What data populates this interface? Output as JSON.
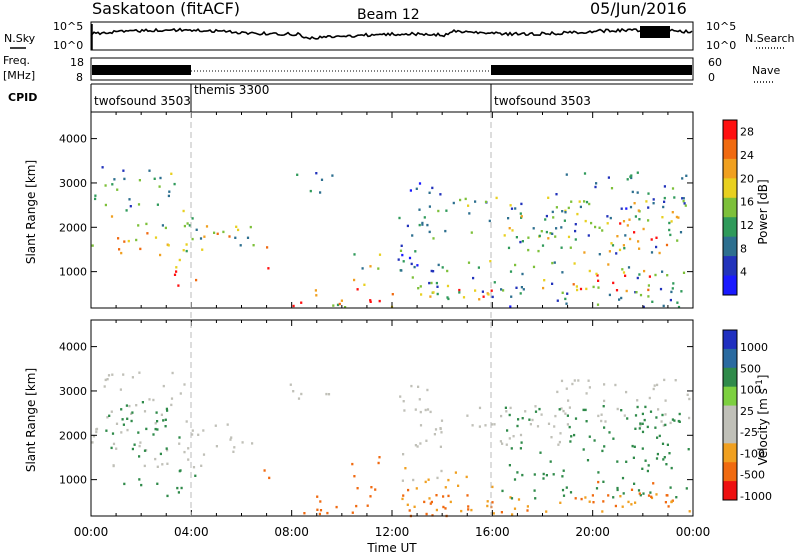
{
  "header": {
    "station": "Saskatoon (fitACF)",
    "beam": "Beam 12",
    "date": "05/Jun/2016"
  },
  "panel_labels": {
    "nsky": "N.Sky",
    "nsearch": "N.Search",
    "freq_line1": "Freq.",
    "freq_line2": "[MHz]",
    "nave": "Nave",
    "cpid": "CPID"
  },
  "noise_axis": {
    "left_ticks": [
      "10^5",
      "10^0"
    ],
    "right_ticks": [
      "10^5",
      "10^0"
    ]
  },
  "freq_axis": {
    "left_ticks": [
      "18",
      "8"
    ],
    "right_ticks": [
      "60",
      "0"
    ]
  },
  "cpid_segments": [
    {
      "label": "twofsound 3503",
      "start_h": 0,
      "end_h": 4
    },
    {
      "label": "themis 3300",
      "start_h": 4,
      "end_h": 16
    },
    {
      "label": "twofsound 3503",
      "start_h": 16,
      "end_h": 24
    }
  ],
  "colors": {
    "power": [
      "#1a1aff",
      "#2233bb",
      "#2d6f8f",
      "#2f9a5a",
      "#7dc03a",
      "#e8d020",
      "#f0a020",
      "#f06a10",
      "#ff1010"
    ],
    "velocity": [
      "#ee1010",
      "#f06a10",
      "#f0a020",
      "#c0c0b8",
      "#c0c0b8",
      "#7dd040",
      "#2f8a4a",
      "#2a6aa0",
      "#2030c0"
    ]
  },
  "chart_data": [
    {
      "type": "heatmap",
      "title": "Power",
      "ylabel": "Slant Range [km]",
      "xlabel": "Time UT",
      "xlim": [
        0,
        24
      ],
      "ylim": [
        180,
        4600
      ],
      "xticks": [
        "00:00",
        "04:00",
        "08:00",
        "12:00",
        "16:00",
        "20:00",
        "00:00"
      ],
      "yticks": [
        1000,
        2000,
        3000,
        4000
      ],
      "colorbar": {
        "label": "Power [dB]",
        "ticks": [
          "4",
          "8",
          "12",
          "16",
          "20",
          "24",
          "28"
        ],
        "range": [
          0,
          30
        ]
      },
      "regions": [
        {
          "t": [
            0.0,
            4.6
          ],
          "r": [
            1300,
            2400
          ],
          "v": 18
        },
        {
          "t": [
            0.1,
            3.8
          ],
          "r": [
            2400,
            3450
          ],
          "v": 10
        },
        {
          "t": [
            3.0,
            4.4
          ],
          "r": [
            650,
            1300
          ],
          "v": 24
        },
        {
          "t": [
            4.0,
            6.5
          ],
          "r": [
            1600,
            2300
          ],
          "v": 16
        },
        {
          "t": [
            6.8,
            7.4
          ],
          "r": [
            1000,
            1600
          ],
          "v": 20
        },
        {
          "t": [
            7.6,
            9.6
          ],
          "r": [
            2800,
            3300
          ],
          "v": 8
        },
        {
          "t": [
            8.0,
            16.0
          ],
          "r": [
            200,
            700
          ],
          "v": 22
        },
        {
          "t": [
            9.5,
            11.5
          ],
          "r": [
            200,
            450
          ],
          "v": 28
        },
        {
          "t": [
            10.3,
            11.5
          ],
          "r": [
            700,
            1600
          ],
          "v": 14
        },
        {
          "t": [
            12.2,
            14.0
          ],
          "r": [
            1000,
            3200
          ],
          "v": 8
        },
        {
          "t": [
            12.3,
            16.2
          ],
          "r": [
            300,
            1300
          ],
          "v": 12
        },
        {
          "t": [
            13.0,
            19.5
          ],
          "r": [
            1800,
            2700
          ],
          "v": 12
        },
        {
          "t": [
            16.0,
            24.0
          ],
          "r": [
            200,
            700
          ],
          "v": 8
        },
        {
          "t": [
            16.3,
            23.8
          ],
          "r": [
            600,
            2700
          ],
          "v": 14
        },
        {
          "t": [
            18.5,
            24.0
          ],
          "r": [
            2200,
            3300
          ],
          "v": 10
        },
        {
          "t": [
            19.0,
            23.0
          ],
          "r": [
            350,
            1000
          ],
          "v": 26
        },
        {
          "t": [
            21.0,
            23.5
          ],
          "r": [
            1500,
            2500
          ],
          "v": 22
        }
      ]
    },
    {
      "type": "heatmap",
      "title": "Velocity",
      "ylabel": "Slant Range [km]",
      "xlabel": "Time UT",
      "xlim": [
        0,
        24
      ],
      "ylim": [
        180,
        4600
      ],
      "xticks": [
        "00:00",
        "04:00",
        "08:00",
        "12:00",
        "16:00",
        "20:00",
        "00:00"
      ],
      "yticks": [
        1000,
        2000,
        3000,
        4000
      ],
      "colorbar": {
        "label": "Velocity [m s^-1]",
        "ticks": [
          "1000",
          "500",
          "100",
          "25",
          "-25",
          "-100",
          "-500",
          "-1000"
        ]
      },
      "regions": [
        {
          "t": [
            0.0,
            4.6
          ],
          "r": [
            1300,
            2400
          ],
          "v": 0
        },
        {
          "t": [
            0.1,
            3.8
          ],
          "r": [
            2400,
            3450
          ],
          "v": 0
        },
        {
          "t": [
            0.5,
            3.5
          ],
          "r": [
            900,
            2800
          ],
          "v": 300
        },
        {
          "t": [
            3.0,
            4.4
          ],
          "r": [
            650,
            1300
          ],
          "v": 400
        },
        {
          "t": [
            4.0,
            6.5
          ],
          "r": [
            1600,
            2300
          ],
          "v": 0
        },
        {
          "t": [
            6.8,
            7.4
          ],
          "r": [
            1000,
            1600
          ],
          "v": -300
        },
        {
          "t": [
            7.6,
            9.6
          ],
          "r": [
            2800,
            3300
          ],
          "v": 0
        },
        {
          "t": [
            8.0,
            16.0
          ],
          "r": [
            200,
            700
          ],
          "v": -200
        },
        {
          "t": [
            9.5,
            11.5
          ],
          "r": [
            200,
            450
          ],
          "v": -300
        },
        {
          "t": [
            10.3,
            11.5
          ],
          "r": [
            700,
            1600
          ],
          "v": -150
        },
        {
          "t": [
            12.2,
            14.0
          ],
          "r": [
            1000,
            3200
          ],
          "v": 0
        },
        {
          "t": [
            12.3,
            16.2
          ],
          "r": [
            300,
            1300
          ],
          "v": -80
        },
        {
          "t": [
            13.0,
            19.5
          ],
          "r": [
            1800,
            2700
          ],
          "v": 0
        },
        {
          "t": [
            16.0,
            24.0
          ],
          "r": [
            200,
            700
          ],
          "v": -80
        },
        {
          "t": [
            16.3,
            23.8
          ],
          "r": [
            600,
            2700
          ],
          "v": 150
        },
        {
          "t": [
            18.5,
            24.0
          ],
          "r": [
            2200,
            3300
          ],
          "v": 0
        },
        {
          "t": [
            19.0,
            23.0
          ],
          "r": [
            350,
            1000
          ],
          "v": -200
        },
        {
          "t": [
            21.0,
            23.5
          ],
          "r": [
            1500,
            2500
          ],
          "v": 250
        }
      ]
    }
  ]
}
